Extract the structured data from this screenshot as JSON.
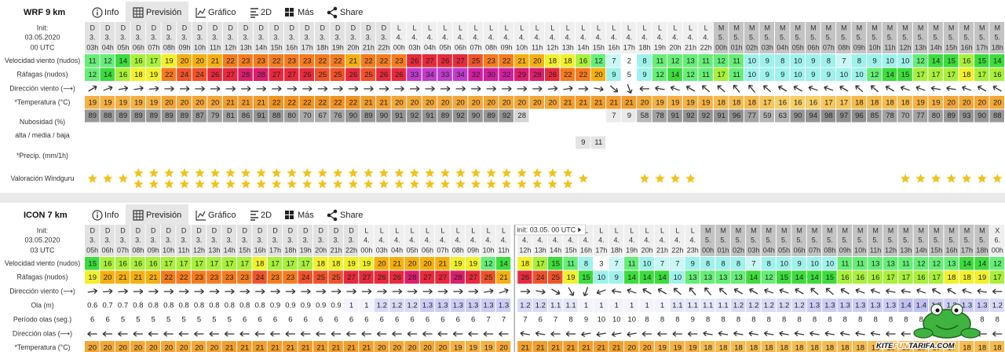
{
  "nav": {
    "info": "Info",
    "forecast": "Previsión",
    "graph": "Gráfico",
    "twod": "2D",
    "more": "Más",
    "share": "Share"
  },
  "logo": {
    "a": "KITE",
    "b": "FUN",
    "c": "TARIFA.COM"
  },
  "models": [
    {
      "name": "WRF 9 km",
      "init": {
        "label": "Init:",
        "date": "03.05.2020",
        "time": "00 UTC"
      },
      "days": [
        {
          "day": "D",
          "date": "3.",
          "hours": [
            "03h",
            "04h",
            "05h",
            "06h",
            "07h",
            "08h",
            "09h",
            "10h",
            "11h",
            "12h",
            "13h",
            "14h",
            "15h",
            "16h",
            "17h",
            "18h",
            "19h",
            "20h",
            "21h",
            "22h"
          ]
        },
        {
          "day": "L",
          "date": "4.",
          "hours": [
            "00h",
            "03h",
            "04h",
            "05h",
            "06h",
            "07h",
            "08h",
            "09h",
            "10h",
            "11h",
            "12h",
            "13h",
            "14h",
            "15h",
            "16h",
            "17h",
            "18h",
            "19h",
            "20h",
            "21h",
            "22h"
          ]
        },
        {
          "day": "M",
          "date": "5.",
          "hours": [
            "00h",
            "01h",
            "02h",
            "03h",
            "04h",
            "05h",
            "06h",
            "07h",
            "08h",
            "09h",
            "10h",
            "11h",
            "12h",
            "13h",
            "14h",
            "15h",
            "16h",
            "17h",
            "18h"
          ]
        }
      ],
      "rows": [
        {
          "kind": "wind",
          "label": "Velocidad viento (nudos)",
          "values": [
            11,
            12,
            14,
            16,
            17,
            19,
            20,
            20,
            21,
            22,
            23,
            23,
            22,
            23,
            23,
            22,
            22,
            21,
            22,
            22,
            23,
            26,
            27,
            26,
            27,
            25,
            23,
            22,
            21,
            20,
            18,
            18,
            16,
            12,
            7,
            2,
            8,
            11,
            12,
            13,
            11,
            12,
            11,
            10,
            9,
            8,
            10,
            9,
            8,
            7,
            8,
            9,
            10,
            10,
            12,
            14,
            15,
            16,
            15,
            14
          ]
        },
        {
          "kind": "gust",
          "label": "Ráfagas (nudos)",
          "values": [
            12,
            14,
            16,
            18,
            19,
            22,
            24,
            24,
            26,
            27,
            28,
            28,
            27,
            27,
            26,
            25,
            25,
            26,
            25,
            26,
            26,
            33,
            34,
            33,
            34,
            32,
            30,
            32,
            29,
            28,
            26,
            22,
            22,
            20,
            9,
            5,
            9,
            12,
            14,
            12,
            11,
            17,
            11,
            10,
            9,
            9,
            10,
            9,
            9,
            10,
            10,
            12,
            14,
            15,
            17,
            17,
            17,
            18,
            17,
            16
          ]
        },
        {
          "kind": "dir",
          "label": "Dirección viento (⟶)",
          "values": [
            60,
            70,
            80,
            80,
            85,
            90,
            90,
            90,
            90,
            90,
            90,
            90,
            90,
            90,
            90,
            90,
            90,
            90,
            90,
            90,
            90,
            90,
            90,
            90,
            90,
            90,
            90,
            90,
            90,
            90,
            85,
            80,
            90,
            100,
            130,
            160,
            270,
            280,
            290,
            300,
            310,
            310,
            320,
            320,
            310,
            300,
            300,
            290,
            290,
            300,
            310,
            310,
            300,
            290,
            290,
            280,
            280,
            290,
            300,
            300
          ]
        },
        {
          "kind": "temp",
          "label": "*Temperatura (°C)",
          "values": [
            19,
            19,
            19,
            19,
            19,
            20,
            20,
            20,
            20,
            21,
            21,
            21,
            22,
            22,
            22,
            22,
            22,
            22,
            21,
            21,
            20,
            20,
            20,
            20,
            20,
            20,
            20,
            20,
            20,
            20,
            20,
            21,
            21,
            21,
            21,
            21,
            20,
            19,
            19,
            19,
            19,
            18,
            18,
            18,
            17,
            16,
            16,
            16,
            17,
            17,
            18,
            18,
            18,
            18,
            19,
            19,
            20,
            20,
            20,
            20
          ]
        },
        {
          "kind": "cloud",
          "label": "Nubosidad (%)",
          "sublabel": "alta / media / baja",
          "values": [
            89,
            88,
            89,
            89,
            89,
            89,
            89,
            87,
            79,
            81,
            86,
            91,
            88,
            80,
            70,
            67,
            76,
            90,
            89,
            90,
            91,
            92,
            91,
            89,
            92,
            90,
            89,
            92,
            28,
            null,
            null,
            null,
            null,
            null,
            7,
            9,
            58,
            78,
            91,
            92,
            92,
            91,
            96,
            77,
            59,
            63,
            90,
            94,
            98,
            97,
            96,
            85,
            78,
            70,
            77,
            80,
            89,
            93,
            90,
            88
          ]
        },
        {
          "kind": "precip",
          "label": "*Precip. (mm/1h)",
          "values": [
            null,
            null,
            null,
            null,
            null,
            null,
            null,
            null,
            null,
            null,
            null,
            null,
            null,
            null,
            null,
            null,
            null,
            null,
            null,
            null,
            null,
            null,
            null,
            null,
            null,
            null,
            null,
            null,
            null,
            null,
            null,
            null,
            9,
            11,
            null,
            null,
            null,
            null,
            null,
            null,
            null,
            null,
            null,
            null,
            null,
            null,
            null,
            null,
            null,
            null,
            null,
            null,
            null,
            null,
            null,
            null,
            null,
            null,
            null,
            null
          ]
        },
        {
          "kind": "stars",
          "label": "Valoración Windguru",
          "values": [
            1,
            1,
            1,
            2,
            2,
            2,
            2,
            2,
            2,
            2,
            2,
            2,
            2,
            2,
            2,
            2,
            2,
            2,
            2,
            2,
            2,
            2,
            2,
            2,
            2,
            2,
            2,
            2,
            2,
            2,
            2,
            2,
            1,
            null,
            null,
            null,
            1,
            1,
            1,
            1,
            null,
            null,
            null,
            null,
            null,
            null,
            null,
            null,
            null,
            null,
            null,
            null,
            null,
            1,
            1,
            1,
            1,
            1,
            1,
            1
          ]
        }
      ]
    },
    {
      "name": "ICON 7 km",
      "init": {
        "label": "Init:",
        "date": "03.05.2020",
        "time": "03 UTC"
      },
      "days": [
        {
          "day": "D",
          "date": "3.",
          "hours": [
            "05h",
            "06h",
            "07h",
            "08h",
            "09h",
            "10h",
            "11h",
            "12h",
            "13h",
            "14h",
            "15h",
            "16h",
            "17h",
            "18h",
            "19h",
            "20h",
            "21h",
            "22h"
          ]
        },
        {
          "day": "L",
          "date": "4.",
          "hours": [
            "00h",
            "03h",
            "04h",
            "05h",
            "06h",
            "07h",
            "08h",
            "09h",
            "10h",
            "11h"
          ]
        },
        {
          "day": "L",
          "date": "4.",
          "note": "init: 03.05. 00 UTC",
          "hours": [
            "12h",
            "13h",
            "14h",
            "15h",
            "16h",
            "17h",
            "18h",
            "19h",
            "20h",
            "21h",
            "22h",
            "23h"
          ]
        },
        {
          "day": "M",
          "date": "5.",
          "hours": [
            "00h",
            "01h",
            "02h",
            "03h",
            "04h",
            "05h",
            "06h",
            "07h",
            "08h",
            "09h",
            "10h",
            "11h",
            "12h",
            "13h",
            "14h",
            "15h",
            "16h",
            "17h",
            "18h"
          ]
        },
        {
          "day": "X",
          "date": "6.",
          "hours": [
            "00h"
          ]
        }
      ],
      "rows": [
        {
          "kind": "wind",
          "label": "Velocidad viento (nudos)",
          "values": [
            15,
            16,
            16,
            16,
            16,
            17,
            17,
            17,
            17,
            17,
            17,
            18,
            17,
            17,
            17,
            18,
            18,
            19,
            19,
            20,
            21,
            20,
            20,
            21,
            19,
            19,
            12,
            14,
            18,
            17,
            15,
            11,
            8,
            3,
            7,
            11,
            10,
            7,
            7,
            9,
            8,
            8,
            8,
            7,
            8,
            10,
            9,
            10,
            10,
            11,
            11,
            13,
            13,
            11,
            12,
            12,
            13,
            14,
            14,
            12
          ]
        },
        {
          "kind": "gust",
          "label": "Ráfagas (nudos)",
          "values": [
            19,
            20,
            21,
            21,
            21,
            22,
            22,
            23,
            23,
            23,
            23,
            24,
            23,
            23,
            24,
            25,
            25,
            27,
            27,
            26,
            26,
            28,
            27,
            27,
            28,
            27,
            25,
            21,
            26,
            24,
            25,
            19,
            15,
            10,
            9,
            14,
            14,
            14,
            10,
            13,
            13,
            13,
            13,
            14,
            12,
            15,
            14,
            14,
            15,
            16,
            16,
            16,
            17,
            17,
            16,
            17,
            18,
            18,
            19,
            17
          ]
        },
        {
          "kind": "dir",
          "label": "Dirección viento (⟶)",
          "values": [
            80,
            85,
            85,
            90,
            90,
            90,
            90,
            90,
            90,
            90,
            90,
            90,
            90,
            90,
            90,
            90,
            90,
            90,
            90,
            90,
            90,
            90,
            90,
            90,
            90,
            90,
            80,
            70,
            90,
            100,
            120,
            150,
            200,
            250,
            280,
            290,
            300,
            300,
            310,
            320,
            320,
            310,
            300,
            300,
            290,
            290,
            300,
            310,
            310,
            300,
            290,
            290,
            280,
            280,
            290,
            300,
            300,
            290,
            280,
            270
          ]
        },
        {
          "kind": "wave",
          "label": "Ola (m)",
          "values": [
            0.6,
            0.7,
            0.7,
            0.8,
            0.8,
            0.8,
            0.8,
            0.8,
            0.8,
            0.8,
            0.8,
            0.8,
            0.9,
            0.9,
            0.9,
            0.9,
            0.9,
            1,
            1,
            1.2,
            1.2,
            1.2,
            1.3,
            1.3,
            1.3,
            1.3,
            1.3,
            1.3,
            1.2,
            1.2,
            1.1,
            1.1,
            1,
            1,
            1,
            1,
            1,
            1,
            1.1,
            1.1,
            1.1,
            1.1,
            1.2,
            1.2,
            1.2,
            1.2,
            1.2,
            1.3,
            1.3,
            1.3,
            1.3,
            1.3,
            1.3,
            1.4,
            1.4,
            1.3,
            1.3,
            1.3,
            1.3,
            1.2
          ]
        },
        {
          "kind": "period",
          "label": "Período olas (seg.)",
          "values": [
            6,
            6,
            5,
            5,
            5,
            5,
            5,
            5,
            5,
            5,
            6,
            6,
            6,
            6,
            6,
            6,
            6,
            6,
            6,
            6,
            6,
            6,
            6,
            6,
            6,
            6,
            7,
            7,
            7,
            6,
            7,
            8,
            9,
            10,
            10,
            10,
            8,
            8,
            8,
            9,
            8,
            8,
            8,
            8,
            8,
            8,
            8,
            8,
            8,
            8,
            8,
            8,
            8,
            8,
            8,
            8,
            8,
            8,
            8,
            8
          ]
        },
        {
          "kind": "wavedir",
          "label": "Dirección olas (⟶)",
          "values": [
            270,
            270,
            270,
            270,
            270,
            270,
            270,
            270,
            270,
            270,
            270,
            270,
            270,
            270,
            270,
            270,
            270,
            270,
            270,
            270,
            270,
            270,
            270,
            270,
            270,
            270,
            270,
            270,
            280,
            280,
            270,
            270,
            260,
            260,
            260,
            260,
            270,
            270,
            270,
            270,
            280,
            280,
            280,
            280,
            280,
            280,
            280,
            280,
            280,
            280,
            280,
            280,
            270,
            270,
            270,
            270,
            270,
            270,
            270,
            270
          ]
        },
        {
          "kind": "temp",
          "label": "*Temperatura (°C)",
          "values": [
            20,
            20,
            20,
            20,
            20,
            20,
            20,
            20,
            20,
            21,
            21,
            21,
            21,
            21,
            21,
            21,
            21,
            21,
            21,
            20,
            20,
            20,
            20,
            20,
            19,
            19,
            19,
            20,
            21,
            21,
            21,
            21,
            21,
            21,
            21,
            20,
            20,
            19,
            19,
            19,
            18,
            18,
            18,
            18,
            18,
            18,
            18,
            18,
            18,
            18,
            18,
            18,
            18,
            18,
            18,
            17,
            17,
            18,
            18,
            18
          ]
        }
      ]
    }
  ]
}
